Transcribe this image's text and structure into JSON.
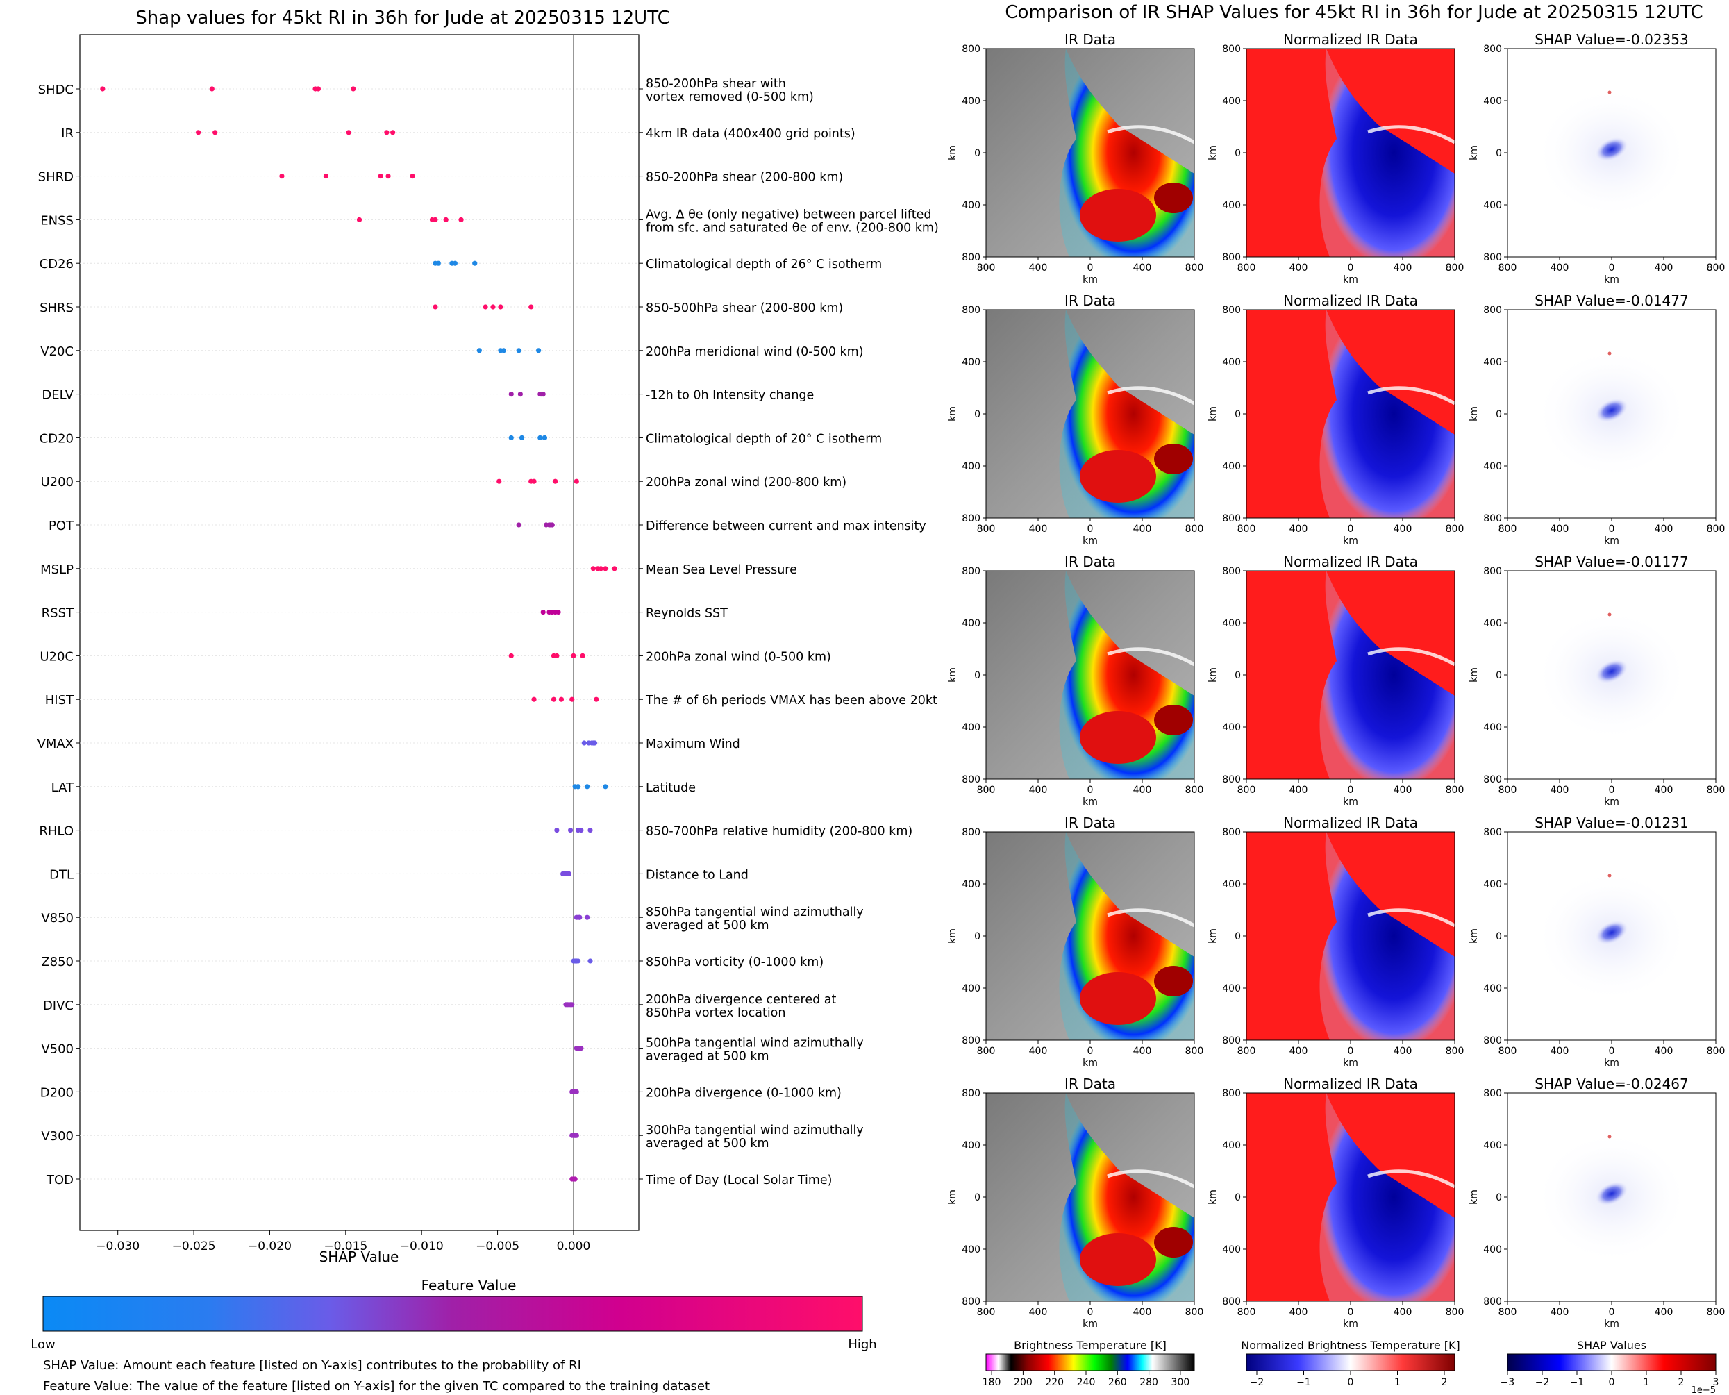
{
  "chart_data": [
    {
      "type": "scatter",
      "title": "Shap values for 45kt RI in 36h for Jude at 20250315 12UTC",
      "xlabel": "SHAP Value",
      "xlim": [
        -0.0325,
        0.0043
      ],
      "xticks": [
        -0.03,
        -0.025,
        -0.02,
        -0.015,
        -0.01,
        -0.005,
        0.0
      ],
      "xtick_labels": [
        "−0.030",
        "−0.025",
        "−0.020",
        "−0.015",
        "−0.010",
        "−0.005",
        "0.000"
      ],
      "zero_line": 0.0,
      "grid": "horizontal dotted at each feature",
      "features": [
        {
          "code": "SHDC",
          "desc": [
            "850-200hPa shear with",
            "vortex removed (0-500 km)"
          ],
          "color": "#ff0e6a",
          "values": [
            -0.031,
            -0.0238,
            -0.017,
            -0.0168,
            -0.0145
          ]
        },
        {
          "code": "IR",
          "desc": [
            "4km IR data (400x400 grid points)"
          ],
          "color": "#ff0e6a",
          "values": [
            -0.0247,
            -0.0236,
            -0.0148,
            -0.0123,
            -0.0119
          ]
        },
        {
          "code": "SHRD",
          "desc": [
            "850-200hPa shear (200-800 km)"
          ],
          "color": "#ff0e6a",
          "values": [
            -0.0192,
            -0.0163,
            -0.0127,
            -0.0122,
            -0.0106
          ]
        },
        {
          "code": "ENSS",
          "desc": [
            "Avg. Δ θe (only negative) between parcel lifted",
            "from sfc. and saturated θe of env. (200-800 km)"
          ],
          "color": "#ff0e6a",
          "values": [
            -0.0141,
            -0.0093,
            -0.0091,
            -0.0084,
            -0.0074
          ]
        },
        {
          "code": "CD26",
          "desc": [
            "Climatological depth of 26° C isotherm"
          ],
          "color": "#1e88e5",
          "values": [
            -0.0091,
            -0.0089,
            -0.008,
            -0.0078,
            -0.0065
          ]
        },
        {
          "code": "SHRS",
          "desc": [
            "850-500hPa shear (200-800 km)"
          ],
          "color": "#ff0e6a",
          "values": [
            -0.0091,
            -0.0058,
            -0.0053,
            -0.0048,
            -0.0028
          ]
        },
        {
          "code": "V20C",
          "desc": [
            "200hPa meridional wind (0-500 km)"
          ],
          "color": "#1e88e5",
          "values": [
            -0.0062,
            -0.0048,
            -0.0046,
            -0.0036,
            -0.0023
          ]
        },
        {
          "code": "DELV",
          "desc": [
            "-12h to 0h Intensity change"
          ],
          "color": "#a020a8",
          "values": [
            -0.0041,
            -0.0035,
            -0.0022,
            -0.0021,
            -0.002
          ]
        },
        {
          "code": "CD20",
          "desc": [
            "Climatological depth of 20° C isotherm"
          ],
          "color": "#1e88e5",
          "values": [
            -0.0041,
            -0.0034,
            -0.0022,
            -0.0019,
            -0.0019
          ]
        },
        {
          "code": "U200",
          "desc": [
            "200hPa zonal wind (200-800 km)"
          ],
          "color": "#ff0e6a",
          "values": [
            -0.0049,
            -0.0028,
            -0.0026,
            -0.0012,
            0.0002
          ]
        },
        {
          "code": "POT",
          "desc": [
            "Difference between current and max intensity"
          ],
          "color": "#a020a8",
          "values": [
            -0.0036,
            -0.0018,
            -0.0016,
            -0.0015,
            -0.0014
          ]
        },
        {
          "code": "MSLP",
          "desc": [
            "Mean Sea Level Pressure"
          ],
          "color": "#ff0e6a",
          "values": [
            0.0013,
            0.0016,
            0.0018,
            0.0021,
            0.0027
          ]
        },
        {
          "code": "RSST",
          "desc": [
            "Reynolds SST"
          ],
          "color": "#c00098",
          "values": [
            -0.002,
            -0.0016,
            -0.0014,
            -0.0012,
            -0.001
          ]
        },
        {
          "code": "U20C",
          "desc": [
            "200hPa zonal wind (0-500 km)"
          ],
          "color": "#ff0e6a",
          "values": [
            -0.0041,
            -0.0013,
            -0.0011,
            0.0,
            0.0006
          ]
        },
        {
          "code": "HIST",
          "desc": [
            "The # of 6h periods VMAX has been above 20kt"
          ],
          "color": "#ff0e6a",
          "values": [
            -0.0026,
            -0.0013,
            -0.0008,
            -0.0001,
            0.0015
          ]
        },
        {
          "code": "VMAX",
          "desc": [
            "Maximum Wind"
          ],
          "color": "#6a5ce8",
          "values": [
            0.0007,
            0.001,
            0.0012,
            0.0013,
            0.0014
          ]
        },
        {
          "code": "LAT",
          "desc": [
            "Latitude"
          ],
          "color": "#1e88e5",
          "values": [
            0.0001,
            0.0003,
            0.0003,
            0.0009,
            0.0021
          ]
        },
        {
          "code": "RHLO",
          "desc": [
            "850-700hPa relative humidity (200-800 km)"
          ],
          "color": "#7a4de0",
          "values": [
            -0.0011,
            -0.0002,
            0.0003,
            0.0005,
            0.0011
          ]
        },
        {
          "code": "DTL",
          "desc": [
            "Distance to Land"
          ],
          "color": "#7a4de0",
          "values": [
            -0.0007,
            -0.0006,
            -0.0005,
            -0.0004,
            -0.0003
          ]
        },
        {
          "code": "V850",
          "desc": [
            "850hPa tangential wind azimuthally",
            "averaged at 500 km"
          ],
          "color": "#8a3fd4",
          "values": [
            0.0002,
            0.0003,
            0.0004,
            0.0004,
            0.0009
          ]
        },
        {
          "code": "Z850",
          "desc": [
            "850hPa vorticity (0-1000 km)"
          ],
          "color": "#6a5ce8",
          "values": [
            0.0,
            0.0001,
            0.0002,
            0.0003,
            0.0011
          ]
        },
        {
          "code": "DIVC",
          "desc": [
            "200hPa divergence centered at",
            "850hPa vortex location"
          ],
          "color": "#9a30c0",
          "values": [
            -0.0005,
            -0.0004,
            -0.0003,
            -0.0002,
            -0.0001
          ]
        },
        {
          "code": "V500",
          "desc": [
            "500hPa tangential wind azimuthally",
            "averaged at 500 km"
          ],
          "color": "#9a30c0",
          "values": [
            0.0002,
            0.0003,
            0.0003,
            0.0004,
            0.0005
          ]
        },
        {
          "code": "D200",
          "desc": [
            "200hPa divergence (0-1000 km)"
          ],
          "color": "#9a30c0",
          "values": [
            -0.0001,
            0.0,
            0.0001,
            0.0001,
            0.0002
          ]
        },
        {
          "code": "V300",
          "desc": [
            "300hPa tangential wind azimuthally",
            "averaged at 500 km"
          ],
          "color": "#9a30c0",
          "values": [
            -0.0001,
            0.0,
            0.0001,
            0.0001,
            0.0002
          ]
        },
        {
          "code": "TOD",
          "desc": [
            "Time of Day (Local Solar Time)"
          ],
          "color": "#b01cb0",
          "values": [
            -0.0001,
            0.0,
            0.0,
            0.0001,
            0.0001
          ]
        }
      ]
    },
    {
      "type": "heatmap",
      "title": "Comparison of IR SHAP Values for 45kt RI in 36h for Jude at 20250315 12UTC",
      "panel_titles": [
        "IR Data",
        "Normalized IR Data"
      ],
      "shap_titles": [
        "SHAP Value=-0.02353",
        "SHAP Value=-0.01477",
        "SHAP Value=-0.01177",
        "SHAP Value=-0.01231",
        "SHAP Value=-0.02467"
      ],
      "axis_label": "km",
      "tick_labels": [
        "800",
        "400",
        "0",
        "400",
        "800"
      ]
    }
  ],
  "colorbars": {
    "feature": {
      "title": "Feature Value",
      "low": "Low",
      "high": "High",
      "colors": [
        "#0a8af5",
        "#7a4de0",
        "#a020a8",
        "#d0008f",
        "#ff0e6a"
      ]
    },
    "brightness": {
      "title": "Brightness Temperature [K]",
      "ticks": [
        "180",
        "200",
        "220",
        "240",
        "260",
        "280",
        "300"
      ]
    },
    "normalized": {
      "title": "Normalized Brightness Temperature [K]",
      "ticks": [
        "−2",
        "−1",
        "0",
        "1",
        "2"
      ]
    },
    "shap": {
      "title": "SHAP Values",
      "ticks": [
        "−3",
        "−2",
        "−1",
        "0",
        "1",
        "2",
        "3"
      ],
      "exponent": "1e−5"
    }
  },
  "notes": [
    "SHAP Value: Amount each feature [listed on Y-axis] contributes to the probability of RI",
    "Feature Value: The value of the feature [listed on Y-axis] for the given TC compared to the training dataset"
  ]
}
